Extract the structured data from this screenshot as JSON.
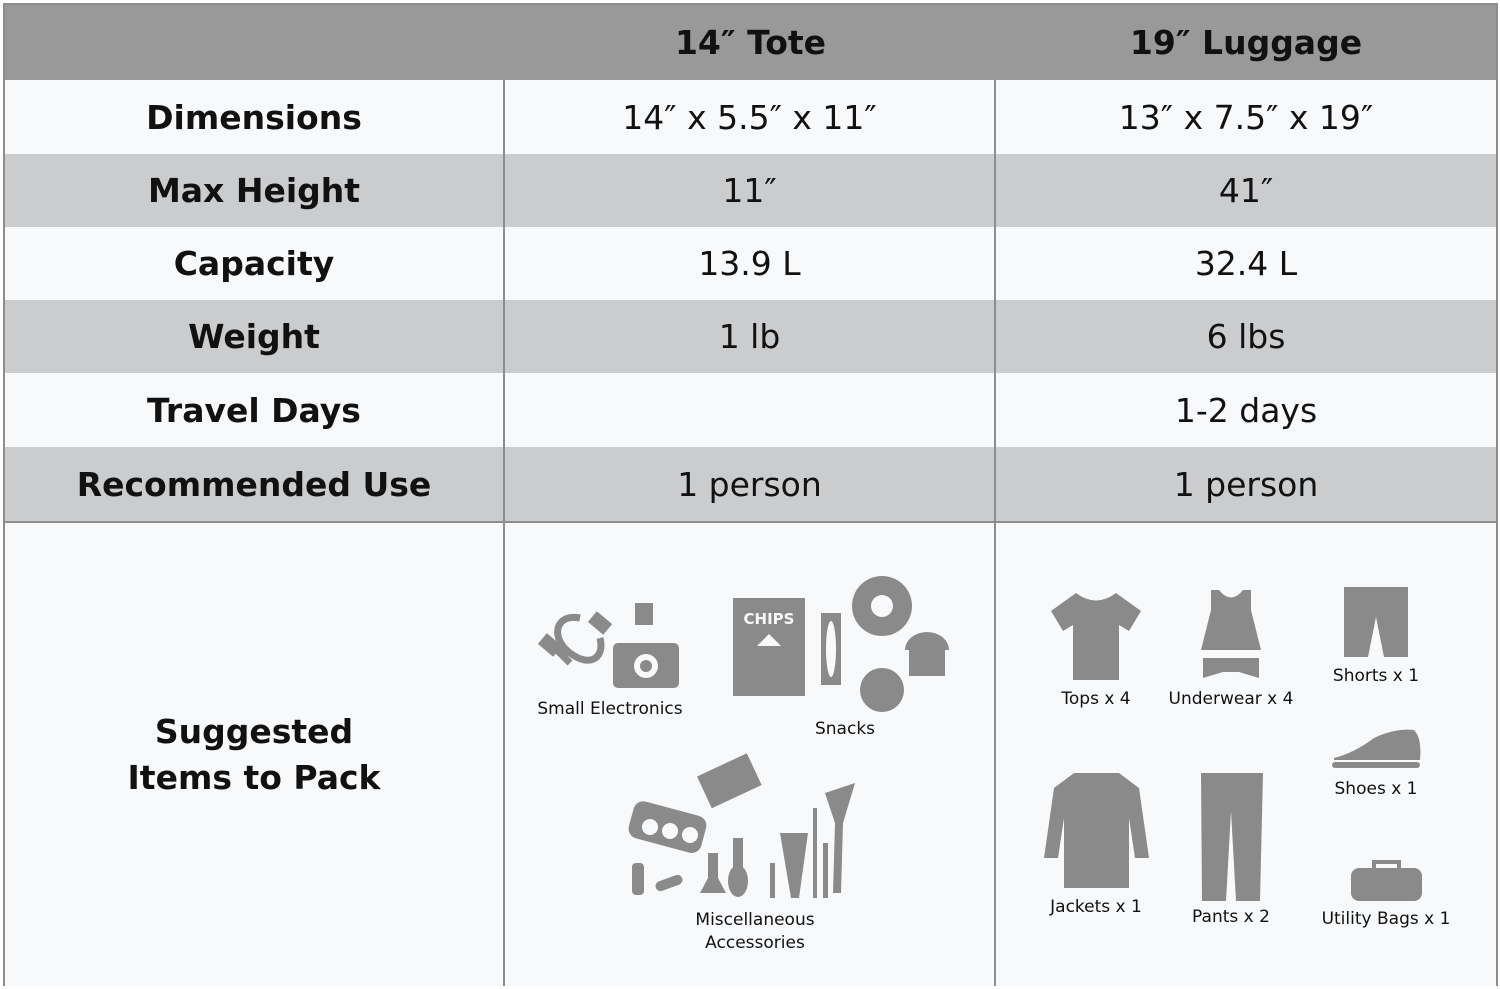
{
  "columns": [
    "",
    "14″ Tote",
    "19″ Luggage"
  ],
  "rows": [
    {
      "label": "Dimensions",
      "tote": "14″ x 5.5″ x 11″",
      "luggage": "13″ x 7.5″ x 19″"
    },
    {
      "label": "Max Height",
      "tote": "11″",
      "luggage": "41″"
    },
    {
      "label": "Capacity",
      "tote": "13.9 L",
      "luggage": "32.4 L"
    },
    {
      "label": "Weight",
      "tote": "1 lb",
      "luggage": "6 lbs"
    },
    {
      "label": "Travel Days",
      "tote": "",
      "luggage": "1-2 days"
    },
    {
      "label": "Recommended Use",
      "tote": "1 person",
      "luggage": "1 person"
    }
  ],
  "suggested": {
    "label_line1": "Suggested",
    "label_line2": "Items to Pack",
    "tote": [
      {
        "label": "Small Electronics",
        "icon": "electronics-icon"
      },
      {
        "label": "Snacks",
        "icon": "snacks-icon",
        "chips_text": "CHIPS"
      },
      {
        "label": "Miscellaneous Accessories",
        "icon": "cosmetics-icon"
      }
    ],
    "luggage": [
      {
        "label": "Tops x 4",
        "icon": "tshirt-icon"
      },
      {
        "label": "Underwear x 4",
        "icon": "underwear-icon"
      },
      {
        "label": "Shorts x 1",
        "icon": "shorts-icon"
      },
      {
        "label": "Shoes x 1",
        "icon": "shoe-icon"
      },
      {
        "label": "Jackets x 1",
        "icon": "jacket-icon"
      },
      {
        "label": "Pants x 2",
        "icon": "pants-icon"
      },
      {
        "label": "Utility Bags x 1",
        "icon": "bag-icon"
      }
    ]
  },
  "colors": {
    "header": "#999999",
    "row_gray": "#cbccce",
    "row_white": "#f8f9fb",
    "icon": "#8a8a8a"
  }
}
